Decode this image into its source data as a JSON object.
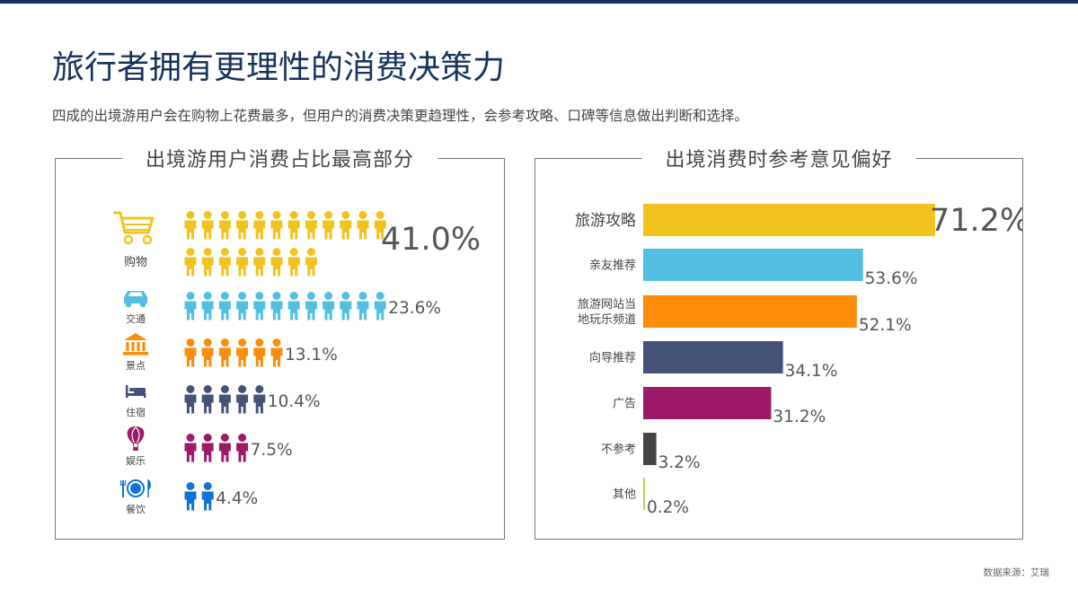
{
  "title": "旅行者拥有更理性的消费决策力",
  "subtitle": "四成的出境游用户会在购物上花费最多，但用户的消费决策更趋理性，会参考攻略、口碑等信息做出判断和选择。",
  "source": "数据来源：艾瑞",
  "colors": {
    "title": "#16335e",
    "text": "#444444",
    "value_text": "#555555",
    "yellow": "#f2c31e",
    "cyan": "#52bfe2",
    "orange": "#fc8c0a",
    "navy": "#455278",
    "purple": "#9c1a67",
    "blue": "#1072d4",
    "gray": "#454545",
    "lime": "#b5d35c"
  },
  "chart_data": [
    {
      "type": "pictograph",
      "title": "出境游用户消费占比最高部分",
      "categories": [
        "购物",
        "交通",
        "景点",
        "住宿",
        "娱乐",
        "餐饮"
      ],
      "values": [
        41.0,
        23.6,
        13.1,
        10.4,
        7.5,
        4.4
      ],
      "value_labels": [
        "41.0%",
        "23.6%",
        "13.1%",
        "10.4%",
        "7.5%",
        "4.4%"
      ],
      "icon_counts": [
        20,
        12,
        6,
        5,
        4,
        2
      ],
      "icons": [
        "shopping-cart-icon",
        "car-icon",
        "museum-icon",
        "bed-icon",
        "hot-air-balloon-icon",
        "dining-icon"
      ],
      "colors": [
        "#f2c31e",
        "#52bfe2",
        "#fc8c0a",
        "#455278",
        "#9c1a67",
        "#1072d4"
      ]
    },
    {
      "type": "bar",
      "orientation": "horizontal",
      "title": "出境消费时参考意见偏好",
      "categories": [
        "旅游攻略",
        "亲友推荐",
        "旅游网站当地玩乐频道",
        "向导推荐",
        "广告",
        "不参考",
        "其他"
      ],
      "category_lines": [
        [
          "旅游攻略"
        ],
        [
          "亲友推荐"
        ],
        [
          "旅游网站当",
          "地玩乐频道"
        ],
        [
          "向导推荐"
        ],
        [
          "广告"
        ],
        [
          "不参考"
        ],
        [
          "其他"
        ]
      ],
      "values": [
        71.2,
        53.6,
        52.1,
        34.1,
        31.2,
        3.2,
        0.2
      ],
      "value_labels": [
        "71.2%",
        "53.6%",
        "52.1%",
        "34.1%",
        "31.2%",
        "3.2%",
        "0.2%"
      ],
      "colors": [
        "#f2c31e",
        "#52bfe2",
        "#fc8c0a",
        "#455278",
        "#9c1a67",
        "#454545",
        "#b5d35c"
      ],
      "xlim": [
        0,
        71.2
      ]
    }
  ]
}
